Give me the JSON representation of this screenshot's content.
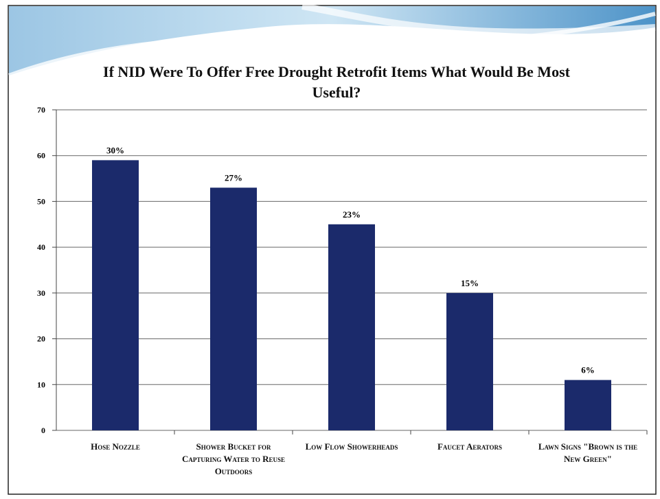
{
  "chart_data": {
    "type": "bar",
    "title": "If NID Were To Offer Free Drought Retrofit Items What Would Be Most Useful?",
    "categories": [
      "Hose Nozzle",
      "Shower Bucket for Capturing Water to Reuse Outdoors",
      "Low Flow Showerheads",
      "Faucet Aerators",
      "Lawn Signs \"Brown is the New Green\""
    ],
    "values": [
      59,
      53,
      45,
      30,
      11
    ],
    "annotations": [
      "30%",
      "27%",
      "23%",
      "15%",
      "6%"
    ],
    "color": "#1b2a6b",
    "ylim": [
      0,
      70
    ],
    "yticks": [
      0,
      10,
      20,
      30,
      40,
      50,
      60,
      70
    ],
    "grid": true
  }
}
